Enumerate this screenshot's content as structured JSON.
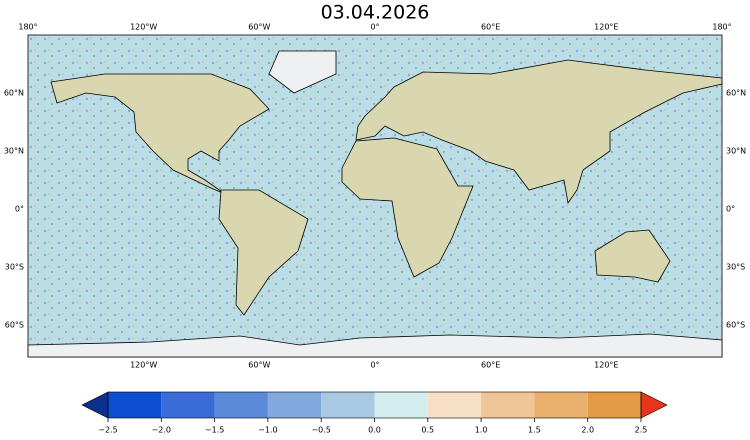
{
  "title": "03.04.2026",
  "map": {
    "top_labels": [
      "180°",
      "120°W",
      "60°W",
      "0°",
      "60°E",
      "120°E",
      "180°"
    ],
    "bottom_labels": [
      "120°W",
      "60°W",
      "0°",
      "60°E",
      "120°E"
    ],
    "left_labels": [
      "60°N",
      "30°N",
      "0°",
      "30°S",
      "60°S"
    ],
    "right_labels": [
      "60°N",
      "30°N",
      "0°",
      "30°S",
      "60°S"
    ]
  },
  "colorbar": {
    "ticks": [
      {
        "value": -2.5,
        "label": "−2.5"
      },
      {
        "value": -2.0,
        "label": "−2.0"
      },
      {
        "value": -1.5,
        "label": "−1.5"
      },
      {
        "value": -1.0,
        "label": "−1.0"
      },
      {
        "value": -0.5,
        "label": "−0.5"
      },
      {
        "value": 0,
        "label": "0.0"
      },
      0.5,
      {
        "value": 1,
        "label": "1.0"
      },
      1.5,
      {
        "value": 2,
        "label": "2.0"
      },
      2.5
    ],
    "colors": [
      "#0c4fd1",
      "#3a6bd6",
      "#5b8ad9",
      "#82a9de",
      "#a9c8e2",
      "#d3ecec",
      "#f6dfc5",
      "#f0c598",
      "#e9b16d",
      "#e59a45"
    ],
    "under_color": "#0a2f8c",
    "over_color": "#e8341d"
  }
}
